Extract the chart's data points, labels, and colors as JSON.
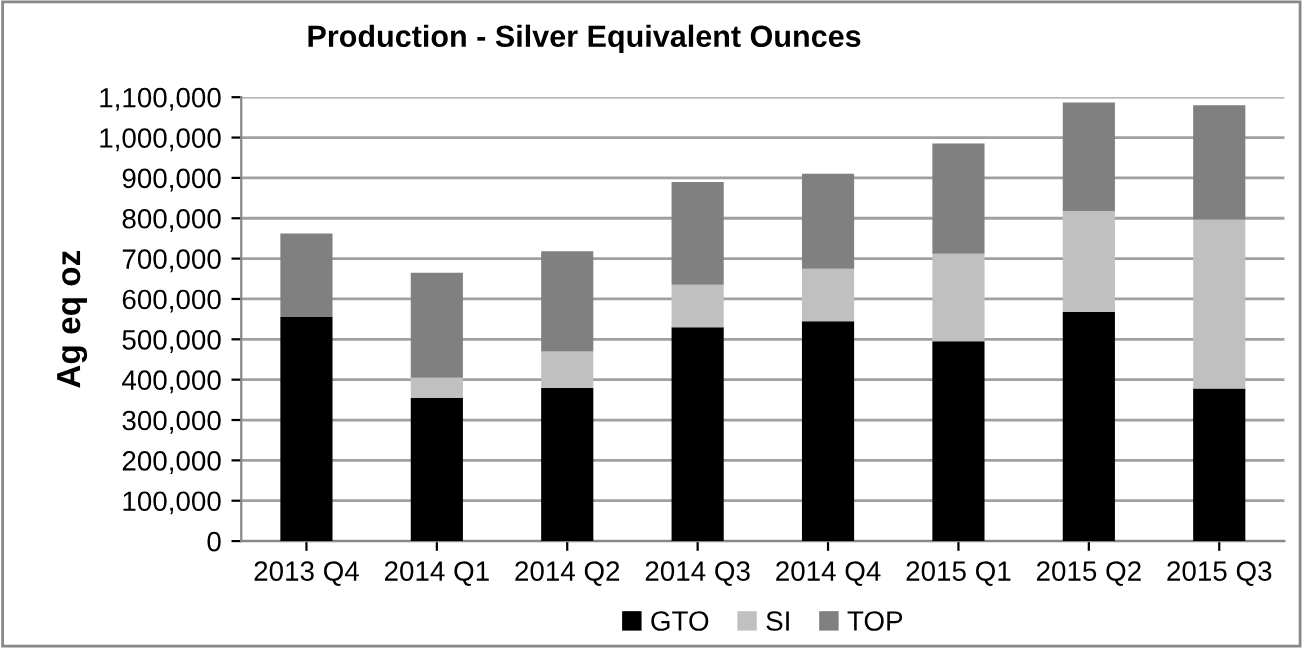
{
  "chart_data": {
    "type": "bar",
    "title": "Production - Silver Equivalent Ounces",
    "ylabel": "Ag eq oz",
    "categories": [
      "2013 Q4",
      "2014 Q1",
      "2014 Q2",
      "2014 Q3",
      "2014 Q4",
      "2015 Q1",
      "2015 Q2",
      "2015 Q3"
    ],
    "stacked": true,
    "series": [
      {
        "name": "GTO",
        "color": "#000000",
        "values": [
          555000,
          355000,
          380000,
          530000,
          545000,
          495000,
          568000,
          378000
        ]
      },
      {
        "name": "SI",
        "color": "#c0c0c0",
        "values": [
          0,
          50000,
          90000,
          105000,
          130000,
          217000,
          250000,
          419000
        ]
      },
      {
        "name": "TOP",
        "color": "#808080",
        "values": [
          207000,
          260000,
          248000,
          255000,
          235000,
          273000,
          269000,
          283000
        ]
      }
    ],
    "ylim": [
      0,
      1100000
    ],
    "yticks": [
      {
        "value": 0,
        "label": "0"
      },
      {
        "value": 100000,
        "label": "100,000"
      },
      {
        "value": 200000,
        "label": "200,000"
      },
      {
        "value": 300000,
        "label": "300,000"
      },
      {
        "value": 400000,
        "label": "400,000"
      },
      {
        "value": 500000,
        "label": "500,000"
      },
      {
        "value": 600000,
        "label": "600,000"
      },
      {
        "value": 700000,
        "label": "700,000"
      },
      {
        "value": 800000,
        "label": "800,000"
      },
      {
        "value": 900000,
        "label": "900,000"
      },
      {
        "value": 1000000,
        "label": "1,000,000"
      },
      {
        "value": 1100000,
        "label": "1,100,000"
      }
    ],
    "grid": "y",
    "legend": "bottom"
  }
}
